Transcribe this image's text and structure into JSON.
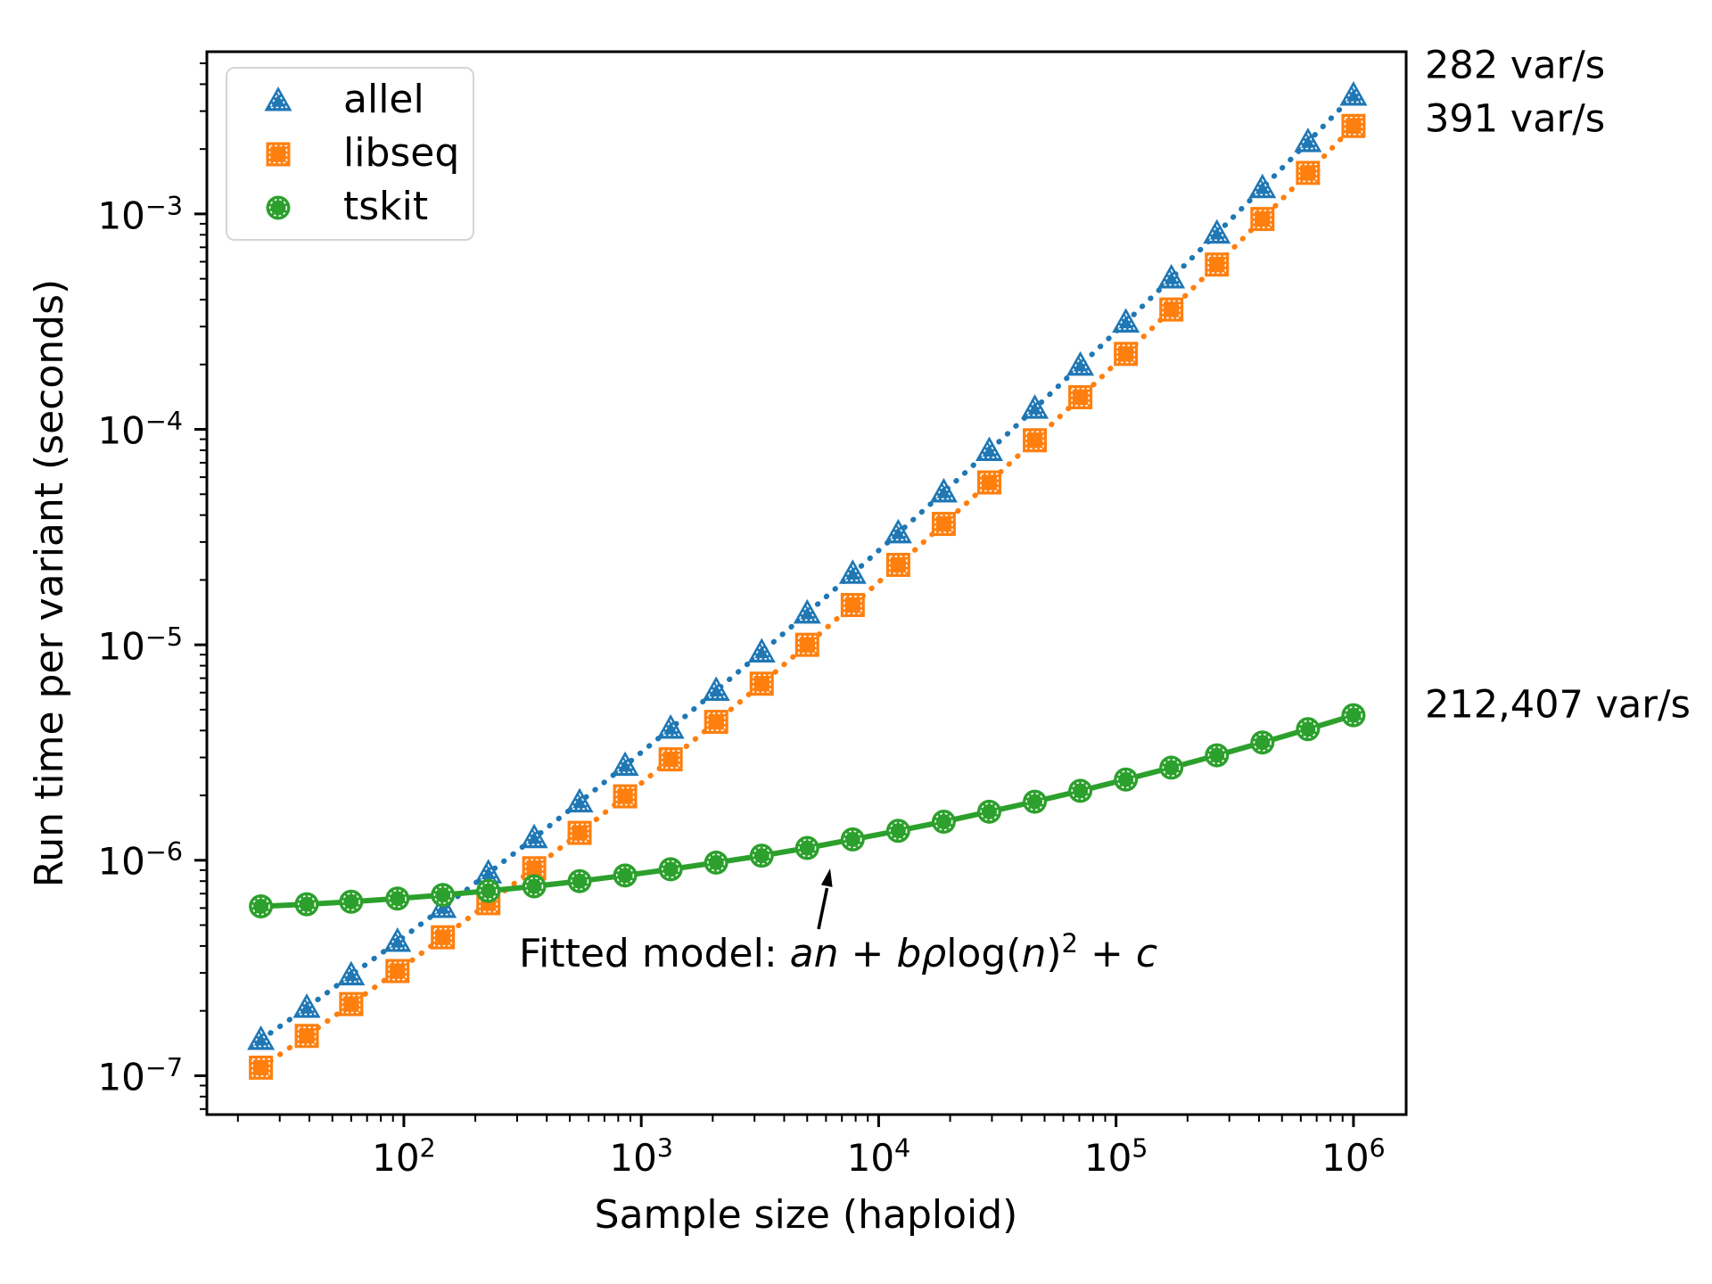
{
  "chart_data": {
    "type": "line",
    "title": "",
    "xlabel": "Sample size (haploid)",
    "ylabel": "Run time per variant (seconds)",
    "xscale": "log",
    "yscale": "log",
    "grid": false,
    "xlim": [
      14.8,
      1667000
    ],
    "ylim": [
      6.6e-08,
      0.00566
    ],
    "x": [
      25,
      39,
      60,
      94,
      146,
      227,
      354,
      550,
      855,
      1330,
      2068,
      3216,
      5000,
      7775,
      12091,
      18803,
      29240,
      45470,
      70711,
      109963,
      171000,
      265915,
      413527,
      643078,
      1000000
    ],
    "series": [
      {
        "name": "allel",
        "color": "#1f77b4",
        "marker": "triangle",
        "linestyle": "dotted",
        "values": [
          1.47e-07,
          2.07e-07,
          2.93e-07,
          4.19e-07,
          6.02e-07,
          8.71e-07,
          1.27e-06,
          1.86e-06,
          2.75e-06,
          4.09e-06,
          6.13e-06,
          9.24e-06,
          1.4e-05,
          2.14e-05,
          3.3e-05,
          5.11e-05,
          7.96e-05,
          0.000125,
          0.000198,
          0.000314,
          0.000503,
          0.000812,
          0.00132,
          0.00216,
          0.00355
        ]
      },
      {
        "name": "libseq",
        "color": "#ff7f0e",
        "marker": "square",
        "linestyle": "dotted",
        "values": [
          1.09e-07,
          1.53e-07,
          2.15e-07,
          3.06e-07,
          4.39e-07,
          6.32e-07,
          9.18e-07,
          1.34e-06,
          1.98e-06,
          2.94e-06,
          4.39e-06,
          6.6e-06,
          1e-05,
          1.53e-05,
          2.35e-05,
          3.64e-05,
          5.67e-05,
          8.9e-05,
          0.000141,
          0.000224,
          0.00036,
          0.000582,
          0.000947,
          0.00155,
          0.00256
        ]
      },
      {
        "name": "tskit",
        "color": "#2ca02c",
        "marker": "circle",
        "linestyle": "solid",
        "values": [
          6.11e-07,
          6.25e-07,
          6.42e-07,
          6.64e-07,
          6.9e-07,
          7.21e-07,
          7.57e-07,
          8e-07,
          8.5e-07,
          9.08e-07,
          9.75e-07,
          1.05e-06,
          1.14e-06,
          1.25e-06,
          1.37e-06,
          1.51e-06,
          1.68e-06,
          1.87e-06,
          2.1e-06,
          2.37e-06,
          2.69e-06,
          3.07e-06,
          3.52e-06,
          4.06e-06,
          4.71e-06
        ]
      }
    ],
    "legend_position": "upper left",
    "x_tick_exponents": [
      2,
      3,
      4,
      5,
      6
    ],
    "y_tick_exponents": [
      -3,
      -4,
      -5,
      -6,
      -7
    ]
  },
  "annotations": {
    "allel_rate": "282 var/s",
    "libseq_rate": "391 var/s",
    "tskit_rate": "212,407 var/s",
    "fitted_model": {
      "plain": "Fitted model: an + bρlog(n)² + c",
      "segments": [
        {
          "t": "Fitted model: "
        },
        {
          "t": "an",
          "i": true
        },
        {
          "t": " + "
        },
        {
          "t": "bρ",
          "i": true
        },
        {
          "t": "log(",
          "i": false
        },
        {
          "t": "n",
          "i": true
        },
        {
          "t": ")"
        },
        {
          "t": "2",
          "sup": true
        },
        {
          "t": " + "
        },
        {
          "t": "c",
          "i": true
        }
      ]
    }
  },
  "colors": {
    "frame": "#000000",
    "text": "#000000",
    "legend_border": "#d5d5d5",
    "marker_inner_edge": "#ffffff"
  }
}
